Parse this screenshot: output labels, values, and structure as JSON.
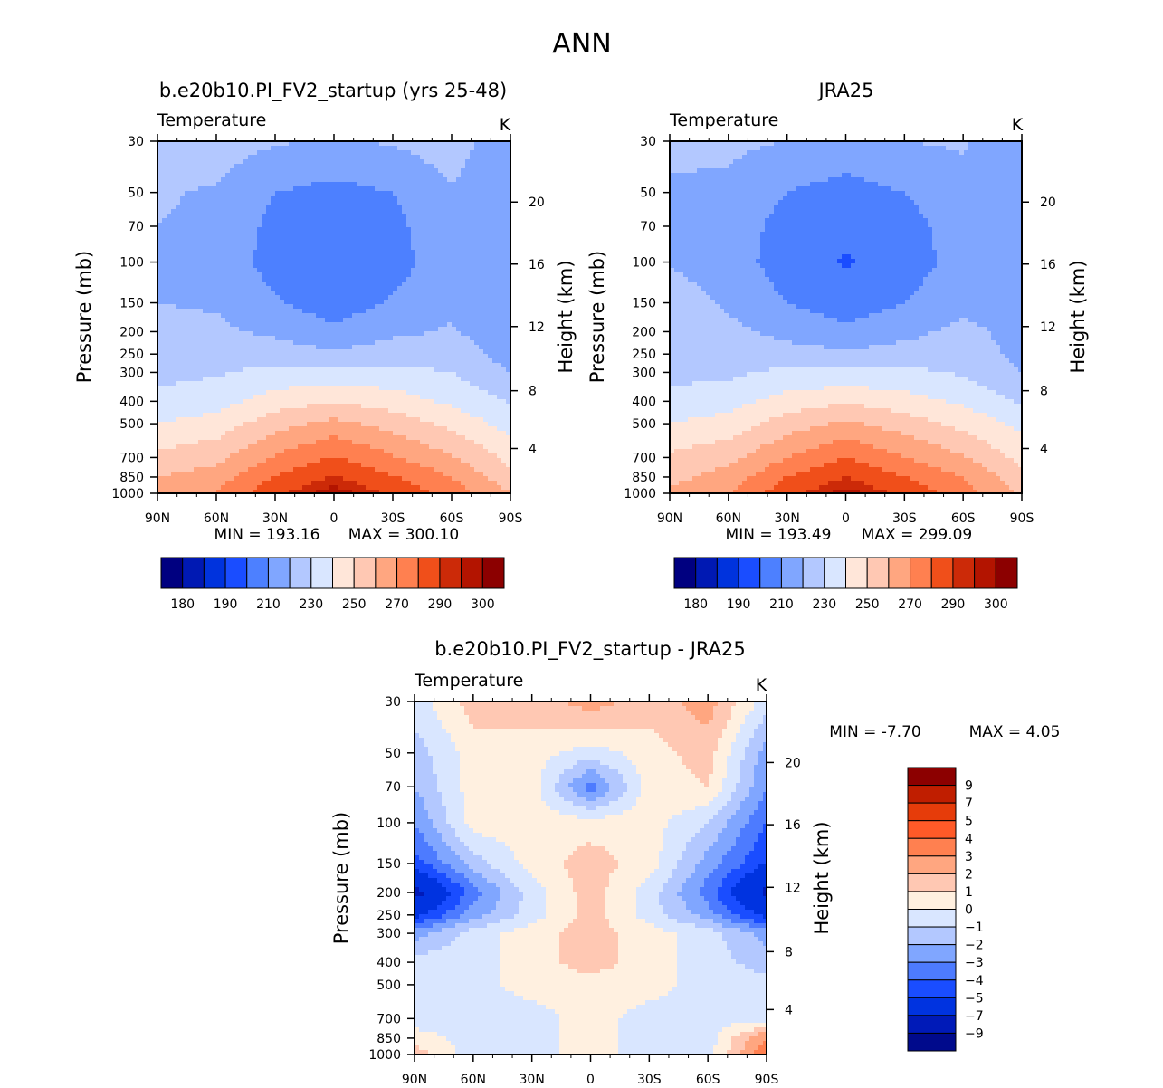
{
  "figure_title": "ANN",
  "chart_data": [
    {
      "type": "heatmap",
      "id": "model",
      "title": "b.e20b10.PI_FV2_startup (yrs 25-48)",
      "variable": "Temperature",
      "units": "K",
      "xlabel": "",
      "ylabel": "Pressure (mb)",
      "y2label": "Height (km)",
      "x_ticks": [
        "90N",
        "60N",
        "30N",
        "0",
        "30S",
        "60S",
        "90S"
      ],
      "y_ticks": [
        "30",
        "50",
        "70",
        "100",
        "150",
        "200",
        "250",
        "300",
        "400",
        "500",
        "700",
        "850",
        "1000"
      ],
      "y2_ticks": [
        "20",
        "16",
        "12",
        "8",
        "4"
      ],
      "min_label": "MIN = 193.16",
      "max_label": "MAX = 300.10",
      "min": 193.16,
      "max": 300.1,
      "colorbar_levels": [
        180,
        185,
        190,
        200,
        210,
        220,
        230,
        240,
        250,
        260,
        270,
        280,
        290,
        295,
        300
      ],
      "colorbar_tick_labels": [
        "180",
        "190",
        "210",
        "230",
        "250",
        "270",
        "290",
        "300"
      ],
      "field": {
        "lat": [
          90,
          60,
          30,
          0,
          -30,
          -60,
          -90
        ],
        "p": [
          30,
          50,
          70,
          100,
          150,
          200,
          250,
          300,
          400,
          500,
          700,
          850,
          1000
        ],
        "values": [
          [
            227,
            225,
            221,
            219,
            221,
            225,
            212
          ],
          [
            221,
            219,
            210,
            207,
            210,
            219,
            213
          ],
          [
            220,
            218,
            207,
            203,
            207,
            218,
            213
          ],
          [
            219,
            216,
            206,
            200,
            206,
            216,
            212
          ],
          [
            220,
            219,
            211,
            205,
            211,
            218,
            212
          ],
          [
            222,
            222,
            218,
            212,
            218,
            221,
            214
          ],
          [
            224,
            225,
            225,
            222,
            225,
            225,
            216
          ],
          [
            227,
            229,
            233,
            232,
            233,
            230,
            220
          ],
          [
            233,
            236,
            245,
            250,
            245,
            238,
            229
          ],
          [
            240,
            244,
            256,
            263,
            256,
            247,
            236
          ],
          [
            253,
            257,
            271,
            281,
            271,
            261,
            247
          ],
          [
            260,
            265,
            281,
            291,
            281,
            270,
            253
          ],
          [
            265,
            270,
            288,
            299,
            288,
            276,
            260
          ]
        ]
      }
    },
    {
      "type": "heatmap",
      "id": "obs",
      "title": "JRA25",
      "variable": "Temperature",
      "units": "K",
      "xlabel": "",
      "ylabel": "Pressure (mb)",
      "y2label": "Height (km)",
      "x_ticks": [
        "90N",
        "60N",
        "30N",
        "0",
        "30S",
        "60S",
        "90S"
      ],
      "y_ticks": [
        "30",
        "50",
        "70",
        "100",
        "150",
        "200",
        "250",
        "300",
        "400",
        "500",
        "700",
        "850",
        "1000"
      ],
      "y2_ticks": [
        "20",
        "16",
        "12",
        "8",
        "4"
      ],
      "min_label": "MIN = 193.49",
      "max_label": "MAX = 299.09",
      "min": 193.49,
      "max": 299.09,
      "colorbar_levels": [
        180,
        185,
        190,
        200,
        210,
        220,
        230,
        240,
        250,
        260,
        270,
        280,
        290,
        295,
        300
      ],
      "colorbar_tick_labels": [
        "180",
        "190",
        "210",
        "230",
        "250",
        "270",
        "290",
        "300"
      ],
      "field": {
        "lat": [
          90,
          60,
          30,
          0,
          -30,
          -60,
          -90
        ],
        "p": [
          30,
          50,
          70,
          100,
          150,
          200,
          250,
          300,
          400,
          500,
          700,
          850,
          1000
        ],
        "values": [
          [
            222,
            222,
            220,
            217,
            220,
            221,
            212
          ],
          [
            219,
            218,
            210,
            206,
            210,
            217,
            213
          ],
          [
            219,
            216,
            206,
            202,
            206,
            215,
            213
          ],
          [
            219,
            215,
            205,
            199,
            205,
            214,
            213
          ],
          [
            226,
            218,
            210,
            205,
            210,
            217,
            214
          ],
          [
            228,
            223,
            217,
            212,
            217,
            223,
            216
          ],
          [
            228,
            226,
            224,
            222,
            224,
            226,
            217
          ],
          [
            227,
            228,
            232,
            232,
            232,
            229,
            220
          ],
          [
            233,
            236,
            244,
            249,
            244,
            238,
            229
          ],
          [
            240,
            244,
            255,
            262,
            255,
            247,
            237
          ],
          [
            252,
            257,
            270,
            280,
            270,
            261,
            247
          ],
          [
            257,
            264,
            280,
            290,
            280,
            270,
            253
          ],
          [
            262,
            269,
            287,
            298,
            287,
            275,
            258
          ]
        ]
      }
    },
    {
      "type": "heatmap",
      "id": "diff",
      "title": "b.e20b10.PI_FV2_startup - JRA25",
      "variable": "Temperature",
      "units": "K",
      "xlabel": "",
      "ylabel": "Pressure (mb)",
      "y2label": "Height (km)",
      "x_ticks": [
        "90N",
        "60N",
        "30N",
        "0",
        "30S",
        "60S",
        "90S"
      ],
      "y_ticks": [
        "30",
        "50",
        "70",
        "100",
        "150",
        "200",
        "250",
        "300",
        "400",
        "500",
        "700",
        "850",
        "1000"
      ],
      "y2_ticks": [
        "20",
        "16",
        "12",
        "8",
        "4"
      ],
      "min_label": "MIN =   -7.70",
      "max_label": "MAX =    4.05",
      "min": -7.7,
      "max": 4.05,
      "colorbar_levels": [
        -9,
        -7,
        -5,
        -4,
        -3,
        -2,
        -1,
        0,
        1,
        2,
        3,
        4,
        5,
        7,
        9
      ],
      "colorbar_tick_labels": [
        "9",
        "7",
        "5",
        "4",
        "3",
        "2",
        "1",
        "0",
        "−1",
        "−2",
        "−3",
        "−4",
        "−5",
        "−7",
        "−9"
      ],
      "field": {
        "lat": [
          90,
          60,
          30,
          0,
          -30,
          -60,
          -90
        ],
        "p": [
          30,
          50,
          70,
          100,
          150,
          200,
          250,
          300,
          400,
          500,
          700,
          850,
          1000
        ],
        "values": [
          [
            -0.5,
            1.5,
            1.5,
            2.5,
            1.5,
            2.5,
            -0.5
          ],
          [
            -1.5,
            0.5,
            0.5,
            -0.5,
            0.5,
            1.5,
            -2.5
          ],
          [
            -2.0,
            0.5,
            0.5,
            -3.5,
            0.5,
            1.0,
            -3.0
          ],
          [
            -3.0,
            0.5,
            0.5,
            0.5,
            0.5,
            -1.0,
            -4.0
          ],
          [
            -4.5,
            -1.5,
            0.5,
            1.5,
            0.5,
            -2.5,
            -5.0
          ],
          [
            -7.7,
            -3.5,
            -0.5,
            1.5,
            -0.5,
            -3.5,
            -7.5
          ],
          [
            -5.5,
            -2.5,
            -0.5,
            1.5,
            -0.5,
            -2.5,
            -5.5
          ],
          [
            -2.5,
            -0.5,
            0.5,
            1.5,
            0.5,
            -0.5,
            -2.5
          ],
          [
            -0.5,
            -0.5,
            0.5,
            1.5,
            0.5,
            -0.5,
            -1.5
          ],
          [
            -0.5,
            -0.5,
            0.5,
            0.5,
            0.5,
            -0.5,
            -0.5
          ],
          [
            -0.5,
            -0.5,
            -0.5,
            0.5,
            -0.5,
            -0.5,
            -0.5
          ],
          [
            0.5,
            -0.5,
            -0.5,
            0.5,
            -0.5,
            -0.5,
            3.0
          ],
          [
            1.5,
            -0.5,
            -0.5,
            0.5,
            -0.5,
            -0.5,
            4.0
          ]
        ]
      }
    }
  ],
  "colors": {
    "temperature_fills": [
      "#000080",
      "#0019b3",
      "#0033dd",
      "#1a4dff",
      "#4d80ff",
      "#80a6ff",
      "#b3c8ff",
      "#d9e6ff",
      "#ffe6d9",
      "#ffc8b3",
      "#ffa680",
      "#ff8050",
      "#f04f1a",
      "#cc2a08",
      "#b31400",
      "#8c0000"
    ],
    "difference_fills": [
      "#000a8c",
      "#001ab8",
      "#0033e0",
      "#1a4dff",
      "#4d7bff",
      "#80a6ff",
      "#b3c8ff",
      "#d9e6ff",
      "#fff0e0",
      "#ffc8b3",
      "#ffa680",
      "#ff8050",
      "#ff5a28",
      "#e63c0a",
      "#c01e00",
      "#8c0000"
    ]
  }
}
